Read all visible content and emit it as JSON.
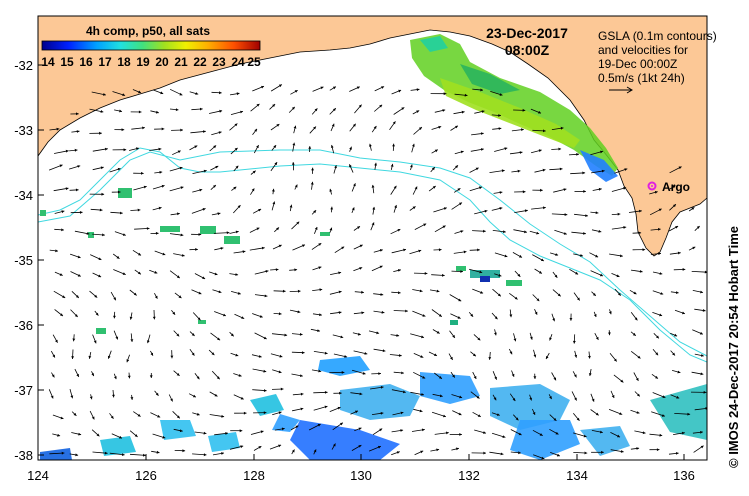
{
  "map": {
    "date": "23-Dec-2017",
    "time": "08:00Z",
    "colorbar": {
      "title": "4h comp, p50, all sats",
      "ticks": [
        "14",
        "15",
        "16",
        "17",
        "18",
        "19",
        "20",
        "21",
        "22",
        "23",
        "24",
        "25"
      ]
    },
    "info": {
      "line1": "GSLA (0.1m contours)",
      "line2": "and velocities for",
      "line3": "19-Dec 00:00Z",
      "line4": "0.5m/s (1kt 24h)"
    },
    "argo_label": "Argo",
    "credit": "© IMOS 24-Dec-2017 20:54 Hobart Time",
    "x_ticks": [
      "124",
      "126",
      "128",
      "130",
      "132",
      "134",
      "136"
    ],
    "y_ticks": [
      "-32",
      "-33",
      "-34",
      "-35",
      "-36",
      "-37",
      "-38"
    ],
    "colors": {
      "land": "#fcc896",
      "contour": "#40d8e0",
      "argo": "#e020e0"
    }
  }
}
